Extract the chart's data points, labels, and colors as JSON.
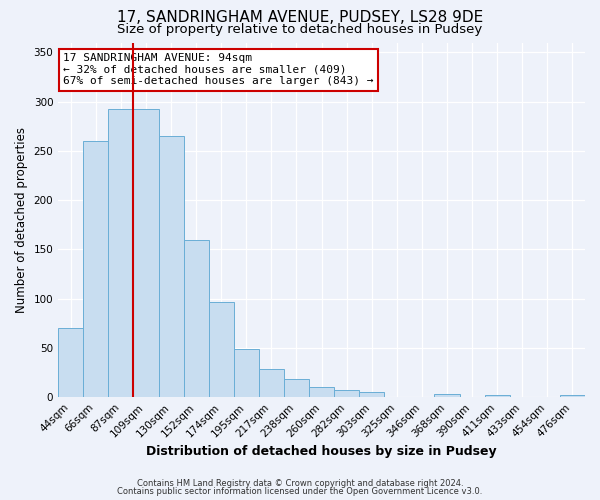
{
  "title": "17, SANDRINGHAM AVENUE, PUDSEY, LS28 9DE",
  "subtitle": "Size of property relative to detached houses in Pudsey",
  "xlabel": "Distribution of detached houses by size in Pudsey",
  "ylabel": "Number of detached properties",
  "categories": [
    "44sqm",
    "66sqm",
    "87sqm",
    "109sqm",
    "130sqm",
    "152sqm",
    "174sqm",
    "195sqm",
    "217sqm",
    "238sqm",
    "260sqm",
    "282sqm",
    "303sqm",
    "325sqm",
    "346sqm",
    "368sqm",
    "390sqm",
    "411sqm",
    "433sqm",
    "454sqm",
    "476sqm"
  ],
  "values": [
    70,
    260,
    293,
    293,
    265,
    160,
    97,
    49,
    29,
    19,
    10,
    7,
    5,
    0,
    0,
    3,
    0,
    2,
    0,
    0,
    2
  ],
  "bar_color": "#c8ddf0",
  "bar_edge_color": "#6aaed6",
  "vline_x": 2.5,
  "vline_color": "#cc0000",
  "annotation_title": "17 SANDRINGHAM AVENUE: 94sqm",
  "annotation_line2": "← 32% of detached houses are smaller (409)",
  "annotation_line3": "67% of semi-detached houses are larger (843) →",
  "annotation_box_color": "#ffffff",
  "annotation_box_edge": "#cc0000",
  "ylim": [
    0,
    360
  ],
  "yticks": [
    0,
    50,
    100,
    150,
    200,
    250,
    300,
    350
  ],
  "footer1": "Contains HM Land Registry data © Crown copyright and database right 2024.",
  "footer2": "Contains public sector information licensed under the Open Government Licence v3.0.",
  "background_color": "#eef2fa",
  "title_fontsize": 11,
  "subtitle_fontsize": 9.5,
  "xlabel_fontsize": 9,
  "ylabel_fontsize": 8.5,
  "tick_fontsize": 7.5,
  "footer_fontsize": 6,
  "ann_fontsize": 8
}
